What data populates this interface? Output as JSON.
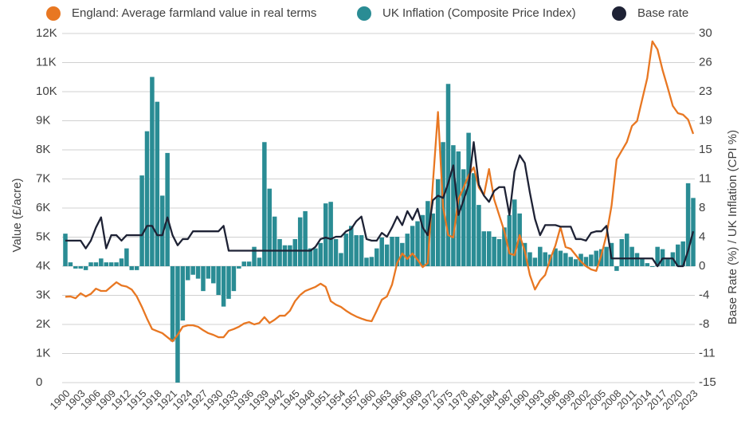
{
  "chart_data": {
    "type": "combo",
    "xlabel_left": "Value (£/acre)",
    "ylabel_right": "Base Rate (%) / UK Inflation (CPI %)",
    "categories": [
      "1900",
      null,
      null,
      "1903",
      null,
      null,
      "1906",
      null,
      null,
      "1909",
      null,
      null,
      "1912",
      null,
      null,
      "1915",
      null,
      null,
      "1918",
      null,
      null,
      "1921",
      null,
      null,
      "1924",
      null,
      null,
      "1927",
      null,
      null,
      "1930",
      null,
      null,
      "1933",
      null,
      null,
      "1936",
      null,
      null,
      "1939",
      null,
      null,
      "1942",
      null,
      null,
      "1945",
      null,
      null,
      "1948",
      null,
      null,
      "1951",
      null,
      null,
      "1954",
      null,
      null,
      "1957",
      null,
      null,
      "1960",
      null,
      null,
      "1963",
      null,
      null,
      "1966",
      null,
      null,
      "1969",
      null,
      null,
      "1972",
      null,
      null,
      "1975",
      null,
      null,
      "1978",
      null,
      null,
      "1981",
      null,
      null,
      "1984",
      null,
      null,
      "1987",
      null,
      null,
      "1990",
      null,
      null,
      "1993",
      null,
      null,
      "1996",
      null,
      null,
      "1999",
      null,
      null,
      "2002",
      null,
      null,
      "2005",
      null,
      null,
      "2008",
      null,
      null,
      "2011",
      null,
      null,
      "2014",
      null,
      null,
      "2017",
      null,
      null,
      "2020",
      null,
      null,
      "2023"
    ],
    "series": [
      {
        "name": "England: Average farmland value in real terms",
        "type": "line",
        "color": "#e87722",
        "values": [
          2950,
          2960,
          2900,
          3070,
          2960,
          3050,
          3230,
          3150,
          3150,
          3300,
          3450,
          3340,
          3300,
          3200,
          2960,
          2600,
          2200,
          1840,
          1770,
          1700,
          1560,
          1420,
          1640,
          1920,
          1970,
          1970,
          1920,
          1800,
          1700,
          1640,
          1560,
          1560,
          1780,
          1840,
          1920,
          2030,
          2080,
          2000,
          2050,
          2250,
          2050,
          2160,
          2300,
          2300,
          2470,
          2800,
          3010,
          3150,
          3220,
          3290,
          3400,
          3290,
          2800,
          2680,
          2600,
          2470,
          2360,
          2270,
          2200,
          2140,
          2110,
          2470,
          2850,
          2960,
          3370,
          4110,
          4440,
          4250,
          4440,
          4220,
          3970,
          4110,
          6850,
          9300,
          6030,
          5070,
          4990,
          6300,
          6700,
          7120,
          7400,
          6710,
          6440,
          7340,
          6300,
          5750,
          5200,
          4440,
          4380,
          5070,
          4520,
          3700,
          3200,
          3510,
          3700,
          4250,
          4710,
          5340,
          4660,
          4600,
          4380,
          4160,
          4000,
          3890,
          3840,
          4380,
          5070,
          6080,
          7670,
          7970,
          8270,
          8820,
          8990,
          9730,
          10470,
          11730,
          11450,
          10740,
          10140,
          9510,
          9260,
          9210,
          9040,
          8550
        ]
      },
      {
        "name": "UK Inflation (Composite Price Index)",
        "type": "bar",
        "axis": "y2",
        "color": "#2a8c94",
        "values": [
          4.2,
          0.5,
          -0.3,
          -0.3,
          -0.5,
          0.5,
          0.5,
          1,
          0.5,
          0.5,
          0.5,
          1,
          2.3,
          -0.5,
          -0.5,
          11.7,
          17.4,
          24.4,
          21.2,
          9.1,
          14.6,
          -9.7,
          -15,
          -7,
          -1.8,
          -1.1,
          -1.6,
          -3.2,
          -1.6,
          -2.2,
          -3.7,
          -5.2,
          -4.2,
          -3.2,
          -0.3,
          0.6,
          0.6,
          2.5,
          1.1,
          16,
          10,
          6.4,
          3.5,
          2.7,
          2.7,
          3.5,
          6.3,
          7.1,
          2.3,
          2.3,
          3,
          8.1,
          8.3,
          3.5,
          1.7,
          4.2,
          5.2,
          4,
          4,
          1.1,
          1.2,
          2.3,
          3.7,
          2.8,
          3.8,
          3.8,
          3,
          4.2,
          5.2,
          5.8,
          6.6,
          8.4,
          6.8,
          11.2,
          16,
          23.5,
          15.6,
          14.8,
          12.5,
          17.2,
          12,
          7.9,
          4.5,
          4.5,
          3.8,
          3.5,
          5,
          6.6,
          8.6,
          6.8,
          3,
          1.8,
          1.1,
          2.5,
          1.8,
          1.5,
          2.3,
          2,
          1.7,
          1.2,
          0.9,
          1.6,
          1.2,
          1.5,
          2,
          2.2,
          2.5,
          3,
          -0.6,
          3.5,
          4.2,
          2.5,
          1.7,
          1,
          0.4,
          -0.1,
          2.5,
          2.2,
          0.9,
          1.8,
          2.8,
          3.2,
          10.7,
          8.8
        ]
      },
      {
        "name": "Base rate",
        "type": "line",
        "axis": "y2",
        "color": "#1e2235",
        "values": [
          3.3,
          3.3,
          3.3,
          3.3,
          2.3,
          3.3,
          5,
          6.3,
          2.3,
          4,
          4,
          3.3,
          4,
          4,
          4,
          4,
          5.2,
          5.2,
          4,
          4,
          6.3,
          4,
          2.7,
          3.5,
          3.5,
          4.5,
          4.5,
          4.5,
          4.5,
          4.5,
          4.5,
          5.2,
          2,
          2,
          2,
          2,
          2,
          2,
          2,
          2,
          2,
          2,
          2,
          2,
          2,
          2,
          2,
          2,
          2,
          2.5,
          3.5,
          3.7,
          3.5,
          3.8,
          3.8,
          4.5,
          4.8,
          5.8,
          6.4,
          3.5,
          3.3,
          3.3,
          4.3,
          3.8,
          5,
          6.4,
          5.3,
          7.1,
          6,
          7.4,
          5,
          4,
          8.5,
          9.1,
          8.8,
          10.7,
          13,
          6.6,
          8.5,
          10.5,
          16,
          10.5,
          9.1,
          8.3,
          9.7,
          10.2,
          10.2,
          6.6,
          12.2,
          14.3,
          13.3,
          9.5,
          6.1,
          4,
          5.3,
          5.3,
          5.3,
          5.1,
          5.1,
          5.1,
          3.5,
          3.5,
          3.3,
          4.3,
          4.5,
          4.5,
          5.2,
          1,
          1,
          1,
          1,
          1,
          1,
          1,
          1,
          1,
          0,
          1,
          1,
          1,
          0,
          0,
          2,
          4.5
        ]
      }
    ],
    "ylim": [
      0,
      12000
    ],
    "yticks": [
      0,
      {
        "value": 1000,
        "label": "1K"
      },
      {
        "value": 2000,
        "label": "2K"
      },
      {
        "value": 3000,
        "label": "3K"
      },
      {
        "value": 4000,
        "label": "4K"
      },
      {
        "value": 5000,
        "label": "5K"
      },
      {
        "value": 6000,
        "label": "6K"
      },
      {
        "value": 7000,
        "label": "7K"
      },
      {
        "value": 8000,
        "label": "8K"
      },
      {
        "value": 9000,
        "label": "9K"
      },
      {
        "value": 10000,
        "label": "10K"
      },
      {
        "value": 11000,
        "label": "11K"
      },
      {
        "value": 12000,
        "label": "12K"
      }
    ],
    "y2lim": [
      -15,
      30
    ],
    "y2ticks": [
      -15,
      {
        "value": -11.25,
        "label": "-11"
      },
      {
        "value": -7.5,
        "label": "-8"
      },
      {
        "value": -3.75,
        "label": "-4"
      },
      0,
      {
        "value": 3.75,
        "label": "4"
      },
      {
        "value": 7.5,
        "label": "8"
      },
      {
        "value": 11.25,
        "label": "11"
      },
      15,
      {
        "value": 18.75,
        "label": "19"
      },
      {
        "value": 22.5,
        "label": "23"
      },
      {
        "value": 26.25,
        "label": "26"
      },
      30
    ],
    "grid": true,
    "legend": "top"
  }
}
